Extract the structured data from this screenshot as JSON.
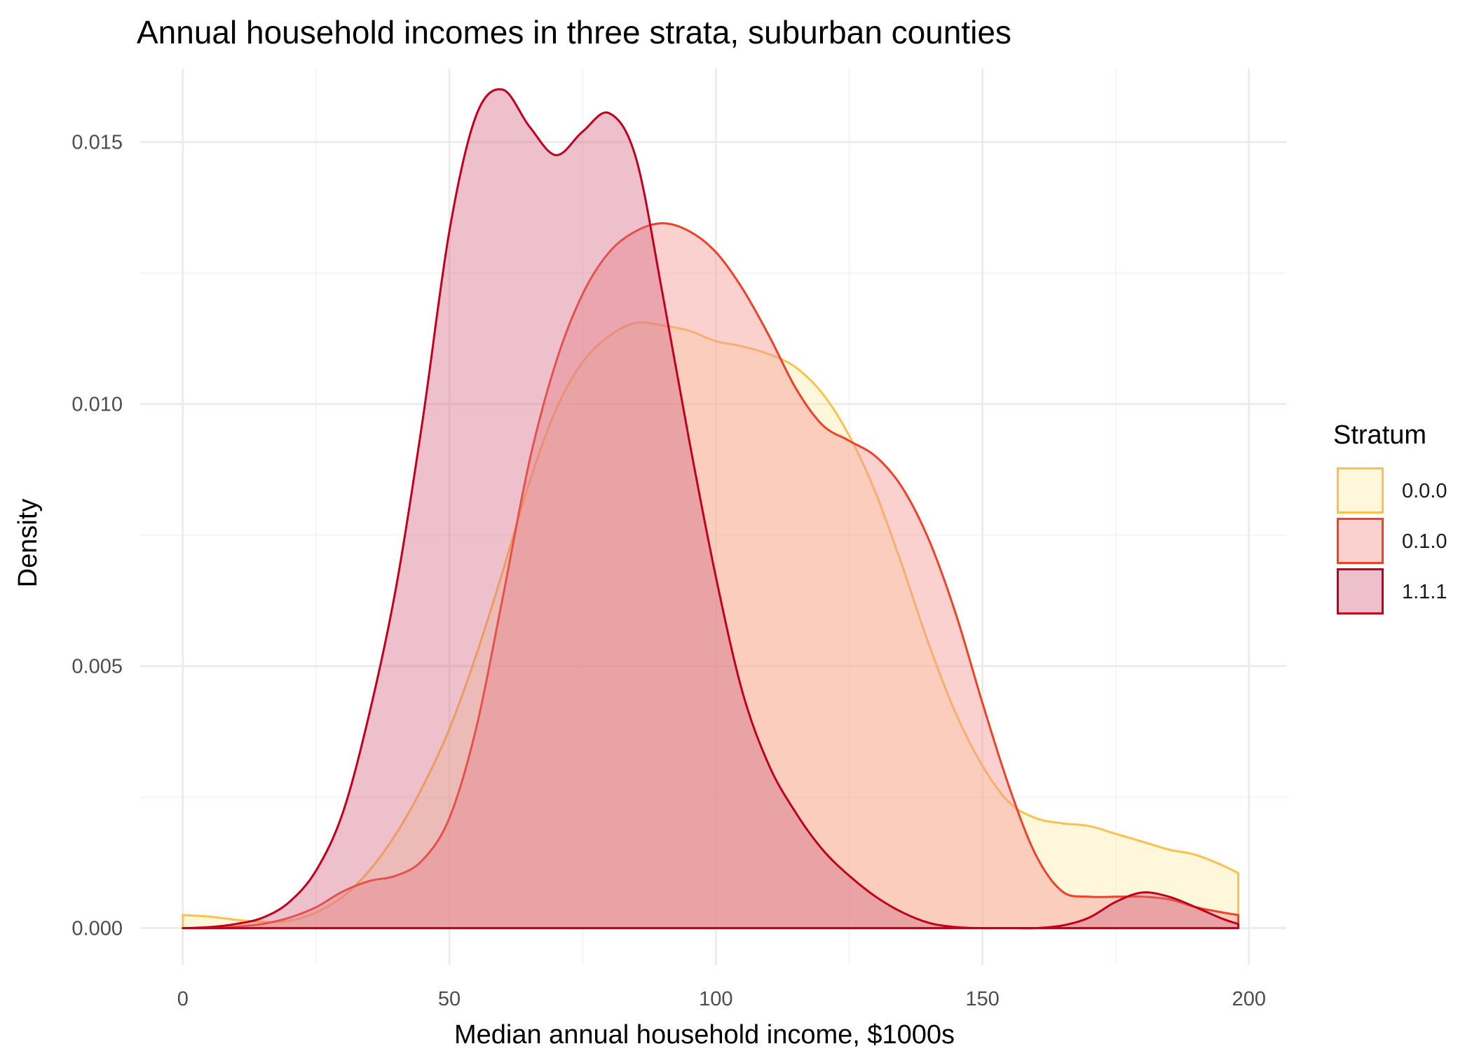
{
  "chart_data": {
    "type": "area",
    "title": "Annual household incomes in three strata, suburban counties",
    "xlabel": "Median annual household income, $1000s",
    "ylabel": "Density",
    "xlim": [
      -8,
      207
    ],
    "ylim": [
      -0.0007,
      0.0164
    ],
    "x_ticks": [
      0,
      50,
      100,
      150,
      200
    ],
    "x_tick_labels": [
      "0",
      "50",
      "100",
      "150",
      "200"
    ],
    "y_ticks": [
      0,
      0.005,
      0.01,
      0.015
    ],
    "y_tick_labels": [
      "0.000",
      "0.005",
      "0.010",
      "0.015"
    ],
    "grid": true,
    "legend": {
      "title": "Stratum",
      "position": "right"
    },
    "series": [
      {
        "name": "0.0.0",
        "line_color": "#FDBF4D",
        "fill_color": "#FEE89A",
        "fill_opacity": 0.35,
        "points": [
          [
            0,
            0.00025
          ],
          [
            5,
            0.00022
          ],
          [
            10,
            0.00016
          ],
          [
            15,
            0.00012
          ],
          [
            20,
            0.00014
          ],
          [
            25,
            0.0003
          ],
          [
            30,
            0.0006
          ],
          [
            35,
            0.0011
          ],
          [
            40,
            0.0018
          ],
          [
            45,
            0.0027
          ],
          [
            50,
            0.0038
          ],
          [
            55,
            0.0052
          ],
          [
            60,
            0.0068
          ],
          [
            65,
            0.0085
          ],
          [
            70,
            0.0099
          ],
          [
            75,
            0.0108
          ],
          [
            80,
            0.0113
          ],
          [
            85,
            0.01155
          ],
          [
            90,
            0.0115
          ],
          [
            95,
            0.0114
          ],
          [
            100,
            0.0112
          ],
          [
            105,
            0.0111
          ],
          [
            110,
            0.01095
          ],
          [
            115,
            0.0107
          ],
          [
            120,
            0.0102
          ],
          [
            125,
            0.0094
          ],
          [
            130,
            0.0083
          ],
          [
            135,
            0.0069
          ],
          [
            140,
            0.0054
          ],
          [
            145,
            0.0041
          ],
          [
            150,
            0.0031
          ],
          [
            155,
            0.0024
          ],
          [
            160,
            0.0021
          ],
          [
            165,
            0.002
          ],
          [
            170,
            0.00195
          ],
          [
            175,
            0.0018
          ],
          [
            180,
            0.00165
          ],
          [
            185,
            0.0015
          ],
          [
            190,
            0.0014
          ],
          [
            195,
            0.0012
          ],
          [
            198,
            0.00105
          ]
        ]
      },
      {
        "name": "0.1.0",
        "line_color": "#EE4227",
        "fill_color": "#F59A95",
        "fill_opacity": 0.45,
        "points": [
          [
            0,
            0
          ],
          [
            5,
            0
          ],
          [
            10,
            3e-05
          ],
          [
            15,
            8e-05
          ],
          [
            20,
            0.0002
          ],
          [
            25,
            0.0004
          ],
          [
            30,
            0.0007
          ],
          [
            35,
            0.0009
          ],
          [
            40,
            0.001
          ],
          [
            45,
            0.0013
          ],
          [
            50,
            0.0021
          ],
          [
            55,
            0.0038
          ],
          [
            60,
            0.0063
          ],
          [
            65,
            0.0089
          ],
          [
            70,
            0.0108
          ],
          [
            75,
            0.0121
          ],
          [
            80,
            0.0129
          ],
          [
            85,
            0.0133
          ],
          [
            90,
            0.01345
          ],
          [
            95,
            0.0133
          ],
          [
            100,
            0.0129
          ],
          [
            105,
            0.0122
          ],
          [
            110,
            0.0113
          ],
          [
            115,
            0.0103
          ],
          [
            120,
            0.0096
          ],
          [
            125,
            0.0093
          ],
          [
            130,
            0.009
          ],
          [
            135,
            0.0084
          ],
          [
            140,
            0.0074
          ],
          [
            145,
            0.006
          ],
          [
            150,
            0.0043
          ],
          [
            155,
            0.0027
          ],
          [
            160,
            0.0014
          ],
          [
            165,
            0.0007
          ],
          [
            170,
            0.0006
          ],
          [
            175,
            0.0006
          ],
          [
            180,
            0.0006
          ],
          [
            185,
            0.00055
          ],
          [
            190,
            0.0004
          ],
          [
            195,
            0.0003
          ],
          [
            198,
            0.00025
          ]
        ]
      },
      {
        "name": "1.1.1",
        "line_color": "#C2001E",
        "fill_color": "#D56A84",
        "fill_opacity": 0.42,
        "points": [
          [
            0,
            0
          ],
          [
            5,
            2e-05
          ],
          [
            10,
            8e-05
          ],
          [
            15,
            0.0002
          ],
          [
            20,
            0.0005
          ],
          [
            25,
            0.0011
          ],
          [
            30,
            0.0022
          ],
          [
            35,
            0.0041
          ],
          [
            40,
            0.0065
          ],
          [
            45,
            0.0097
          ],
          [
            50,
            0.0133
          ],
          [
            55,
            0.0155
          ],
          [
            60,
            0.016
          ],
          [
            65,
            0.0153
          ],
          [
            70,
            0.01475
          ],
          [
            75,
            0.0152
          ],
          [
            80,
            0.01555
          ],
          [
            85,
            0.0147
          ],
          [
            90,
            0.0121
          ],
          [
            95,
            0.0093
          ],
          [
            100,
            0.0067
          ],
          [
            105,
            0.0045
          ],
          [
            110,
            0.0031
          ],
          [
            115,
            0.0022
          ],
          [
            120,
            0.0015
          ],
          [
            125,
            0.001
          ],
          [
            130,
            0.0006
          ],
          [
            135,
            0.0003
          ],
          [
            140,
            0.0001
          ],
          [
            145,
            2e-05
          ],
          [
            150,
            0
          ],
          [
            155,
            0
          ],
          [
            160,
            0
          ],
          [
            165,
            5e-05
          ],
          [
            170,
            0.0002
          ],
          [
            175,
            0.0005
          ],
          [
            180,
            0.00068
          ],
          [
            185,
            0.0006
          ],
          [
            190,
            0.0004
          ],
          [
            195,
            0.00018
          ],
          [
            198,
            8e-05
          ]
        ]
      }
    ]
  }
}
